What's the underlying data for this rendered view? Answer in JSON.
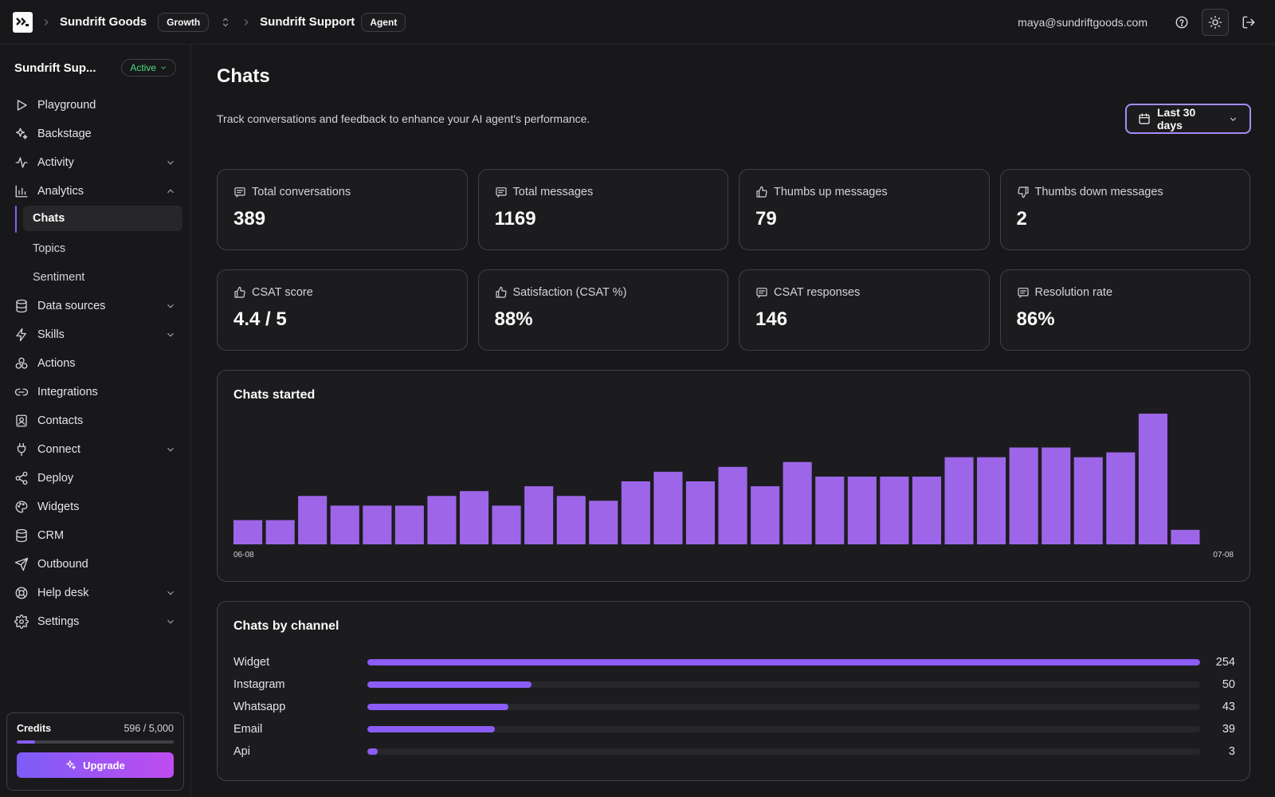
{
  "header": {
    "org": "Sundrift Goods",
    "plan": "Growth",
    "agent": "Sundrift Support",
    "agent_badge": "Agent",
    "email": "maya@sundriftgoods.com"
  },
  "sidebar": {
    "agent_name": "Sundrift Sup...",
    "status": "Active",
    "items": [
      {
        "label": "Playground",
        "icon": "play-icon"
      },
      {
        "label": "Backstage",
        "icon": "sparkles-icon"
      },
      {
        "label": "Activity",
        "icon": "activity-icon"
      },
      {
        "label": "Analytics",
        "icon": "bar-chart-icon"
      },
      {
        "label": "Data sources",
        "icon": "database-icon"
      },
      {
        "label": "Skills",
        "icon": "zap-icon"
      },
      {
        "label": "Actions",
        "icon": "blocks-icon"
      },
      {
        "label": "Integrations",
        "icon": "link-icon"
      },
      {
        "label": "Contacts",
        "icon": "contact-icon"
      },
      {
        "label": "Connect",
        "icon": "plug-icon"
      },
      {
        "label": "Deploy",
        "icon": "share-icon"
      },
      {
        "label": "Widgets",
        "icon": "palette-icon"
      },
      {
        "label": "CRM",
        "icon": "database-icon"
      },
      {
        "label": "Outbound",
        "icon": "send-icon"
      },
      {
        "label": "Help desk",
        "icon": "lifebuoy-icon"
      },
      {
        "label": "Settings",
        "icon": "gear-icon"
      }
    ],
    "analytics_sub": [
      "Chats",
      "Topics",
      "Sentiment"
    ],
    "credits_label": "Credits",
    "credits_value": "596 / 5,000",
    "credits_used": 596,
    "credits_total": 5000,
    "upgrade_label": "Upgrade"
  },
  "main": {
    "title": "Chats",
    "subtitle": "Track conversations and feedback to enhance your AI agent's performance.",
    "date_range": "Last 30 days",
    "stats": [
      {
        "label": "Total conversations",
        "value": "389",
        "icon": "message-icon"
      },
      {
        "label": "Total messages",
        "value": "1169",
        "icon": "message-icon"
      },
      {
        "label": "Thumbs up messages",
        "value": "79",
        "icon": "thumbs-up-icon"
      },
      {
        "label": "Thumbs down messages",
        "value": "2",
        "icon": "thumbs-down-icon"
      },
      {
        "label": "CSAT score",
        "value": "4.4 / 5",
        "icon": "thumbs-up-icon"
      },
      {
        "label": "Satisfaction (CSAT %)",
        "value": "88%",
        "icon": "thumbs-up-icon"
      },
      {
        "label": "CSAT responses",
        "value": "146",
        "icon": "message-icon"
      },
      {
        "label": "Resolution rate",
        "value": "86%",
        "icon": "message-icon"
      }
    ],
    "chats_started_title": "Chats started",
    "channel_title": "Chats by channel"
  },
  "chart_data": [
    {
      "type": "bar",
      "title": "Chats started",
      "x_start_label": "06-08",
      "x_end_label": "07-08",
      "values": [
        5,
        5,
        10,
        8,
        8,
        8,
        10,
        11,
        8,
        12,
        10,
        9,
        13,
        15,
        13,
        16,
        12,
        17,
        14,
        14,
        14,
        14,
        18,
        18,
        20,
        20,
        18,
        19,
        27,
        3
      ],
      "ylim": [
        0,
        27
      ],
      "color": "#9d66e8"
    },
    {
      "type": "bar",
      "title": "Chats by channel",
      "categories": [
        "Widget",
        "Instagram",
        "Whatsapp",
        "Email",
        "Api"
      ],
      "values": [
        254,
        50,
        43,
        39,
        3
      ],
      "color": "#8b5cf6"
    }
  ]
}
